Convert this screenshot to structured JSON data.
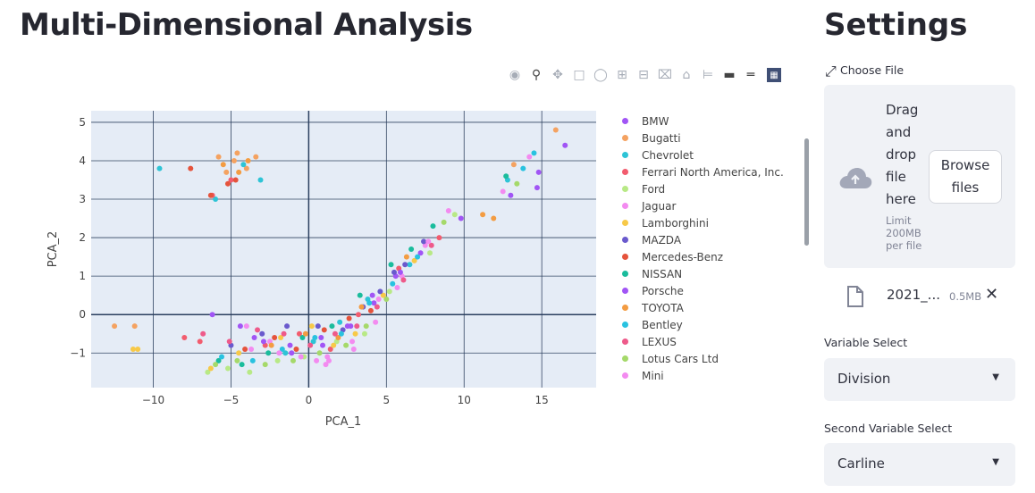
{
  "page": {
    "title": "Multi-Dimensional Analysis",
    "sidebar_title": "Settings"
  },
  "modebar": {
    "icons": [
      "camera-icon",
      "zoom-icon",
      "pan-icon",
      "box-select-icon",
      "lasso-select-icon",
      "zoom-in-icon",
      "zoom-out-icon",
      "autoscale-icon",
      "reset-axes-icon",
      "spike-lines-icon",
      "hover-closest-icon",
      "hover-compare-icon",
      "plotly-logo-icon"
    ]
  },
  "uploader": {
    "label": "Choose File",
    "drop_text": "Drag and drop file here",
    "limit_text": "Limit 200MB per file",
    "browse_label": "Browse files",
    "file_name": "2021_...",
    "file_size": "0.5MB",
    "close_glyph": "✕"
  },
  "variable_select": {
    "label": "Variable Select",
    "value": "Division"
  },
  "second_variable_select": {
    "label": "Second Variable Select",
    "value": "Carline"
  },
  "chart_data": {
    "type": "scatter",
    "xlabel": "PCA_1",
    "ylabel": "PCA_2",
    "xlim": [
      -14,
      18.5
    ],
    "ylim": [
      -1.9,
      5.3
    ],
    "xticks": [
      -10,
      -5,
      0,
      5,
      10,
      15
    ],
    "yticks": [
      -1,
      0,
      1,
      2,
      3,
      4,
      5
    ],
    "grid": true,
    "legend_position": "right",
    "series": [
      {
        "name": "BMW",
        "color": "#a155f5",
        "points": [
          [
            -3.5,
            -0.6
          ],
          [
            -1.2,
            -0.8
          ],
          [
            0.8,
            -0.6
          ],
          [
            2.5,
            -0.3
          ],
          [
            4.2,
            0.3
          ],
          [
            5.6,
            1.0
          ],
          [
            7.2,
            1.6
          ],
          [
            9.8,
            2.5
          ],
          [
            14.8,
            3.7
          ],
          [
            16.5,
            4.4
          ]
        ]
      },
      {
        "name": "Bugatti",
        "color": "#f4a261",
        "points": [
          [
            -12.5,
            -0.3
          ],
          [
            -11.2,
            -0.3
          ],
          [
            -5.8,
            4.1
          ],
          [
            -4.8,
            4.0
          ],
          [
            -4.0,
            3.8
          ],
          [
            -4.6,
            4.2
          ],
          [
            -5.3,
            3.7
          ],
          [
            -3.4,
            4.1
          ],
          [
            15.9,
            4.8
          ],
          [
            13.2,
            3.9
          ]
        ]
      },
      {
        "name": "Chevrolet",
        "color": "#2ec4d6",
        "points": [
          [
            -9.6,
            3.8
          ],
          [
            -6.0,
            3.0
          ],
          [
            -3.1,
            3.5
          ],
          [
            -4.2,
            3.9
          ],
          [
            -1.5,
            -1.0
          ],
          [
            0.3,
            -0.7
          ],
          [
            2.0,
            -0.2
          ],
          [
            3.8,
            0.4
          ],
          [
            6.5,
            1.3
          ],
          [
            12.8,
            3.5
          ]
        ]
      },
      {
        "name": "Ferrari North America, Inc.",
        "color": "#f25c6e",
        "points": [
          [
            -8.0,
            -0.6
          ],
          [
            -7.0,
            -0.7
          ],
          [
            -6.2,
            3.1
          ],
          [
            -5.0,
            3.5
          ],
          [
            -2.8,
            -0.8
          ],
          [
            -0.6,
            -0.5
          ],
          [
            1.4,
            -0.9
          ],
          [
            3.2,
            0.0
          ],
          [
            5.8,
            1.2
          ],
          [
            8.4,
            2.0
          ]
        ]
      },
      {
        "name": "Ford",
        "color": "#b8e986",
        "points": [
          [
            -6.5,
            -1.5
          ],
          [
            -5.2,
            -1.4
          ],
          [
            -3.8,
            -1.5
          ],
          [
            -2.0,
            -1.2
          ],
          [
            -0.3,
            -1.1
          ],
          [
            1.8,
            -0.7
          ],
          [
            3.6,
            -0.5
          ],
          [
            5.2,
            0.6
          ],
          [
            7.8,
            1.6
          ],
          [
            9.4,
            2.6
          ]
        ]
      },
      {
        "name": "Jaguar",
        "color": "#f38bf0",
        "points": [
          [
            -4.0,
            -0.3
          ],
          [
            -2.5,
            -0.7
          ],
          [
            0.5,
            -1.2
          ],
          [
            1.2,
            -1.1
          ],
          [
            2.8,
            -0.7
          ],
          [
            4.5,
            0.4
          ],
          [
            6.0,
            1.0
          ],
          [
            7.5,
            1.8
          ],
          [
            12.5,
            3.2
          ],
          [
            14.2,
            4.1
          ]
        ]
      },
      {
        "name": "Lamborghini",
        "color": "#f7c948",
        "points": [
          [
            -11.3,
            -0.9
          ],
          [
            -11.0,
            -0.9
          ],
          [
            -6.3,
            -1.4
          ],
          [
            -4.5,
            -1.0
          ],
          [
            -1.8,
            -0.6
          ],
          [
            0.2,
            -0.3
          ],
          [
            1.6,
            -0.8
          ],
          [
            3.0,
            -0.5
          ],
          [
            4.8,
            0.5
          ],
          [
            6.8,
            1.4
          ]
        ]
      },
      {
        "name": "MAZDA",
        "color": "#6a5acd",
        "points": [
          [
            -5.0,
            -0.8
          ],
          [
            -3.0,
            -0.5
          ],
          [
            -1.4,
            -0.3
          ],
          [
            0.6,
            -0.3
          ],
          [
            2.2,
            -0.4
          ],
          [
            3.5,
            0.2
          ],
          [
            4.6,
            0.6
          ],
          [
            5.5,
            1.1
          ],
          [
            6.2,
            1.3
          ],
          [
            7.4,
            1.9
          ]
        ]
      },
      {
        "name": "Mercedes-Benz",
        "color": "#e5533c",
        "points": [
          [
            -7.6,
            3.8
          ],
          [
            -6.3,
            3.1
          ],
          [
            -5.2,
            3.4
          ],
          [
            -4.7,
            3.5
          ],
          [
            -4.1,
            -0.9
          ],
          [
            -2.2,
            -0.6
          ],
          [
            -0.8,
            -0.9
          ],
          [
            1.0,
            -0.4
          ],
          [
            2.6,
            -0.1
          ],
          [
            4.0,
            0.1
          ]
        ]
      },
      {
        "name": "NISSAN",
        "color": "#1abc9c",
        "points": [
          [
            -5.8,
            -1.2
          ],
          [
            -4.3,
            -1.3
          ],
          [
            -2.6,
            -1.0
          ],
          [
            -0.4,
            -0.6
          ],
          [
            1.5,
            -0.3
          ],
          [
            3.3,
            0.5
          ],
          [
            5.3,
            1.3
          ],
          [
            6.6,
            1.7
          ],
          [
            8.0,
            2.3
          ],
          [
            12.7,
            3.6
          ]
        ]
      },
      {
        "name": "Porsche",
        "color": "#a155f5",
        "points": [
          [
            -6.2,
            0.0
          ],
          [
            -4.4,
            -0.3
          ],
          [
            -2.9,
            -0.7
          ],
          [
            -1.1,
            -1.0
          ],
          [
            0.9,
            -0.8
          ],
          [
            2.7,
            -0.3
          ],
          [
            4.1,
            0.5
          ],
          [
            5.9,
            1.1
          ],
          [
            13.0,
            3.1
          ],
          [
            14.7,
            3.3
          ]
        ]
      },
      {
        "name": "TOYOTA",
        "color": "#f39c42",
        "points": [
          [
            -5.5,
            3.9
          ],
          [
            -4.5,
            3.7
          ],
          [
            -3.9,
            4.0
          ],
          [
            -2.4,
            -0.8
          ],
          [
            -0.2,
            -0.5
          ],
          [
            1.9,
            -0.6
          ],
          [
            3.4,
            0.2
          ],
          [
            6.3,
            1.5
          ],
          [
            11.2,
            2.6
          ],
          [
            11.9,
            2.5
          ]
        ]
      },
      {
        "name": "Bentley",
        "color": "#29c2e0",
        "points": [
          [
            -5.6,
            -1.1
          ],
          [
            -3.6,
            -1.2
          ],
          [
            -1.7,
            -0.9
          ],
          [
            0.4,
            -0.6
          ],
          [
            2.1,
            -0.5
          ],
          [
            3.9,
            0.3
          ],
          [
            5.4,
            0.8
          ],
          [
            7.0,
            1.5
          ],
          [
            13.8,
            3.8
          ],
          [
            14.5,
            4.2
          ]
        ]
      },
      {
        "name": "LEXUS",
        "color": "#ee5a8a",
        "points": [
          [
            -6.8,
            -0.5
          ],
          [
            -5.1,
            -0.7
          ],
          [
            -3.3,
            -0.4
          ],
          [
            -1.6,
            -0.5
          ],
          [
            0.1,
            -0.8
          ],
          [
            1.7,
            -0.5
          ],
          [
            3.1,
            -0.3
          ],
          [
            4.4,
            0.2
          ],
          [
            6.1,
            0.9
          ],
          [
            7.9,
            1.8
          ]
        ]
      },
      {
        "name": "Lotus Cars Ltd",
        "color": "#a5d96a",
        "points": [
          [
            -6.0,
            -1.3
          ],
          [
            -4.6,
            -1.2
          ],
          [
            -2.8,
            -1.3
          ],
          [
            -1.0,
            -1.2
          ],
          [
            0.7,
            -1.0
          ],
          [
            2.4,
            -0.8
          ],
          [
            3.7,
            -0.3
          ],
          [
            5.0,
            0.4
          ],
          [
            8.7,
            2.4
          ],
          [
            13.4,
            3.4
          ]
        ]
      },
      {
        "name": "Mini",
        "color": "#f38bf0",
        "points": [
          [
            -3.7,
            -0.9
          ],
          [
            -1.9,
            -1.0
          ],
          [
            -0.5,
            -1.1
          ],
          [
            1.1,
            -1.3
          ],
          [
            1.3,
            -1.2
          ],
          [
            2.9,
            -0.9
          ],
          [
            4.3,
            -0.2
          ],
          [
            5.7,
            0.7
          ],
          [
            7.7,
            1.9
          ],
          [
            9.0,
            2.7
          ]
        ]
      }
    ]
  }
}
